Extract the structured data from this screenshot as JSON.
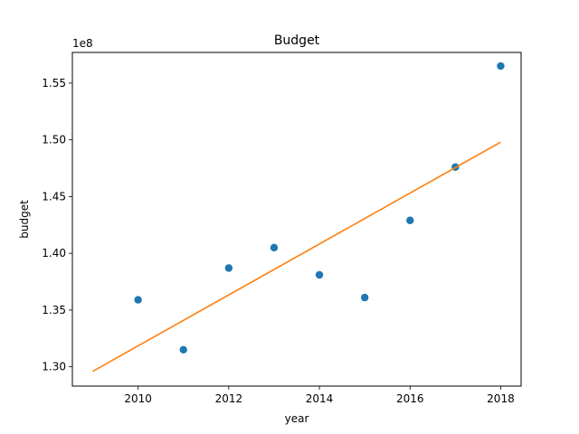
{
  "chart_data": {
    "type": "scatter",
    "title": "Budget",
    "xlabel": "year",
    "ylabel": "budget",
    "y_offset_label": "1e8",
    "xlim": [
      2008.55,
      2018.45
    ],
    "ylim": [
      128300000.0,
      157700000.0
    ],
    "x_ticks": [
      2010,
      2012,
      2014,
      2016,
      2018
    ],
    "x_tick_labels": [
      "2010",
      "2012",
      "2014",
      "2016",
      "2018"
    ],
    "y_ticks": [
      130000000.0,
      135000000.0,
      140000000.0,
      145000000.0,
      150000000.0,
      155000000.0
    ],
    "y_tick_labels": [
      "1.30",
      "1.35",
      "1.40",
      "1.45",
      "1.50",
      "1.55"
    ],
    "grid": false,
    "series": [
      {
        "type": "scatter",
        "color": "#1f77b4",
        "x": [
          2010,
          2011,
          2012,
          2013,
          2014,
          2015,
          2016,
          2017,
          2018
        ],
        "y": [
          135900000.0,
          131500000.0,
          138700000.0,
          140500000.0,
          138100000.0,
          136100000.0,
          142900000.0,
          147600000.0,
          156500000.0
        ]
      },
      {
        "type": "line",
        "color": "#ff7f0e",
        "x": [
          2009,
          2018
        ],
        "y": [
          129600000.0,
          149800000.0
        ]
      }
    ]
  }
}
